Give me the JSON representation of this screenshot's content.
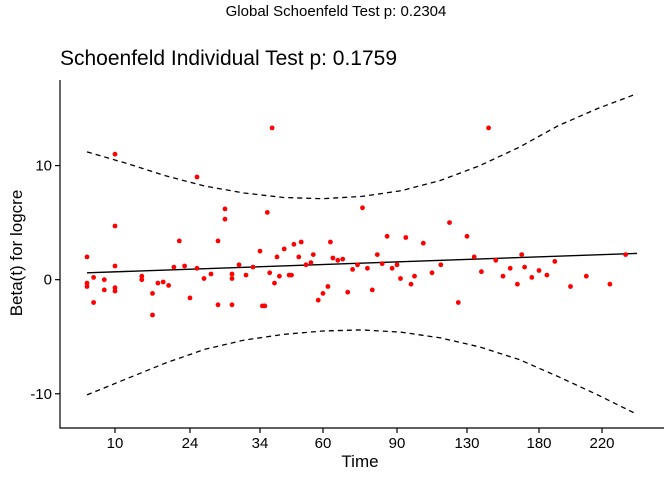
{
  "global_title": "Global Schoenfeld Test p: 0.2304",
  "chart_data": {
    "type": "scatter",
    "title": "Schoenfeld Individual Test p: 0.1759",
    "xlabel": "Time",
    "ylabel": "Beta(t) for logcre",
    "x_ticks": [
      "10",
      "24",
      "34",
      "60",
      "90",
      "130",
      "180",
      "220"
    ],
    "y_ticks": [
      -10,
      0,
      10
    ],
    "ylim": [
      -13,
      17.5
    ],
    "grid": false,
    "legend": "none",
    "x_scale": "transformed (rank-based); positions 0-1 across tick range",
    "colors": {
      "points": "#ff0000",
      "fit": "#000000",
      "band": "#000000"
    },
    "series": [
      {
        "role": "residual points",
        "x": [
          5,
          6,
          7,
          8,
          8,
          9,
          9,
          10,
          10,
          10,
          10,
          10,
          15,
          15,
          17,
          17,
          18,
          19,
          20,
          21,
          22,
          23,
          24,
          25,
          25,
          26,
          27,
          28,
          28,
          29,
          29,
          30,
          30,
          30,
          31,
          32,
          33,
          34,
          35,
          36,
          37,
          38,
          39,
          40,
          41,
          42,
          44,
          46,
          47,
          48,
          50,
          51,
          53,
          55,
          56,
          58,
          60,
          62,
          63,
          64,
          66,
          68,
          70,
          72,
          74,
          76,
          78,
          80,
          82,
          84,
          86,
          88,
          90,
          92,
          95,
          98,
          100,
          105,
          110,
          115,
          120,
          125,
          130,
          135,
          140,
          145,
          150,
          155,
          160,
          165,
          168,
          170,
          175,
          180,
          185,
          190,
          200,
          210,
          225,
          235
        ],
        "y": [
          -0.3,
          -0.6,
          2.0,
          -2.0,
          0.2,
          0.0,
          -0.9,
          -1.0,
          11.0,
          4.7,
          1.2,
          -0.7,
          0.3,
          0.0,
          -3.1,
          -1.2,
          -0.3,
          -0.2,
          -0.5,
          1.1,
          3.4,
          1.2,
          -1.6,
          1.0,
          9.0,
          0.1,
          0.5,
          3.4,
          -2.2,
          5.3,
          6.2,
          0.1,
          -2.2,
          0.5,
          1.3,
          0.4,
          1.1,
          2.5,
          -2.3,
          -2.3,
          5.9,
          0.6,
          13.3,
          -0.3,
          2.0,
          0.3,
          2.7,
          0.4,
          0.4,
          3.1,
          2.0,
          3.3,
          1.3,
          1.5,
          2.2,
          -1.8,
          -1.2,
          -0.6,
          3.3,
          1.9,
          1.7,
          1.8,
          -1.1,
          0.9,
          1.3,
          6.3,
          1.0,
          -0.9,
          2.2,
          1.4,
          3.8,
          1.0,
          1.3,
          0.1,
          3.7,
          -0.4,
          0.3,
          3.2,
          0.6,
          1.3,
          5.0,
          -2.0,
          3.8,
          2.0,
          0.7,
          13.3,
          1.7,
          0.3,
          1.0,
          -0.4,
          2.2,
          1.1,
          0.2,
          0.8,
          0.4,
          1.6,
          -0.6,
          0.3,
          -0.4,
          2.2
        ],
        "order": [
          0,
          1,
          2,
          3,
          4,
          5,
          6,
          7,
          8,
          9,
          10,
          11,
          12,
          13,
          14,
          15,
          16,
          17,
          18,
          19,
          20,
          21,
          22,
          23,
          24,
          25,
          26,
          27,
          28,
          29,
          30,
          31,
          32,
          33,
          34,
          35,
          36,
          37,
          38,
          39,
          40,
          41,
          42,
          43,
          44,
          45,
          46,
          47,
          48,
          49,
          50,
          51,
          52,
          53,
          54,
          55,
          56,
          57,
          58,
          59,
          60,
          61,
          62,
          63,
          64,
          65,
          66,
          67,
          68,
          69,
          70,
          71,
          72,
          73,
          74,
          75,
          76,
          77,
          78,
          79,
          80,
          81,
          82,
          83,
          84,
          85,
          86,
          87,
          88,
          89,
          90,
          91,
          92,
          93,
          94,
          95,
          96,
          97,
          98,
          99
        ]
      }
    ],
    "fit_line": {
      "y_start": 0.6,
      "y_end": 2.3
    },
    "band": {
      "upper": [
        11.2,
        10.2,
        9.1,
        8.2,
        7.6,
        7.2,
        7.1,
        7.3,
        7.8,
        8.7,
        10.0,
        11.6,
        13.5,
        15.0,
        16.3
      ],
      "lower": [
        -10.1,
        -8.7,
        -7.3,
        -6.1,
        -5.3,
        -4.8,
        -4.5,
        -4.4,
        -4.6,
        -5.1,
        -5.9,
        -7.0,
        -8.5,
        -10.1,
        -11.8
      ]
    }
  }
}
